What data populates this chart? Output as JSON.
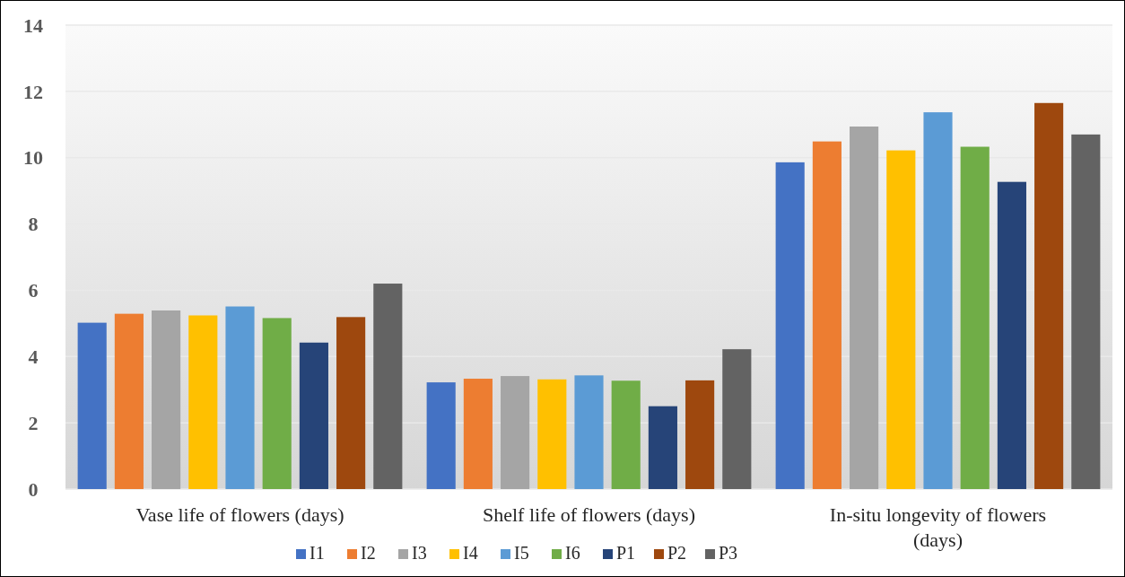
{
  "chart_data": {
    "type": "bar",
    "categories": [
      "Vase life of flowers (days)",
      "Shelf life of flowers (days)",
      "In-situ longevity of flowers (days)"
    ],
    "series": [
      {
        "name": "I1",
        "color": "#4472c4",
        "values": [
          5.02,
          3.22,
          9.86
        ]
      },
      {
        "name": "I2",
        "color": "#ed7d31",
        "values": [
          5.29,
          3.33,
          10.49
        ]
      },
      {
        "name": "I3",
        "color": "#a5a5a5",
        "values": [
          5.39,
          3.41,
          10.94
        ]
      },
      {
        "name": "I4",
        "color": "#ffc000",
        "values": [
          5.24,
          3.31,
          10.22
        ]
      },
      {
        "name": "I5",
        "color": "#5b9bd5",
        "values": [
          5.51,
          3.43,
          11.37
        ]
      },
      {
        "name": "I6",
        "color": "#70ad47",
        "values": [
          5.16,
          3.27,
          10.33
        ]
      },
      {
        "name": "P1",
        "color": "#264478",
        "values": [
          4.42,
          2.5,
          9.27
        ]
      },
      {
        "name": "P2",
        "color": "#9e480e",
        "values": [
          5.19,
          3.28,
          11.65
        ]
      },
      {
        "name": "P3",
        "color": "#636363",
        "values": [
          6.2,
          4.22,
          10.7
        ]
      }
    ],
    "ylim": [
      0,
      14
    ],
    "yticks": [
      0,
      2,
      4,
      6,
      8,
      10,
      12,
      14
    ],
    "grid": "y",
    "legend": "bottom"
  }
}
